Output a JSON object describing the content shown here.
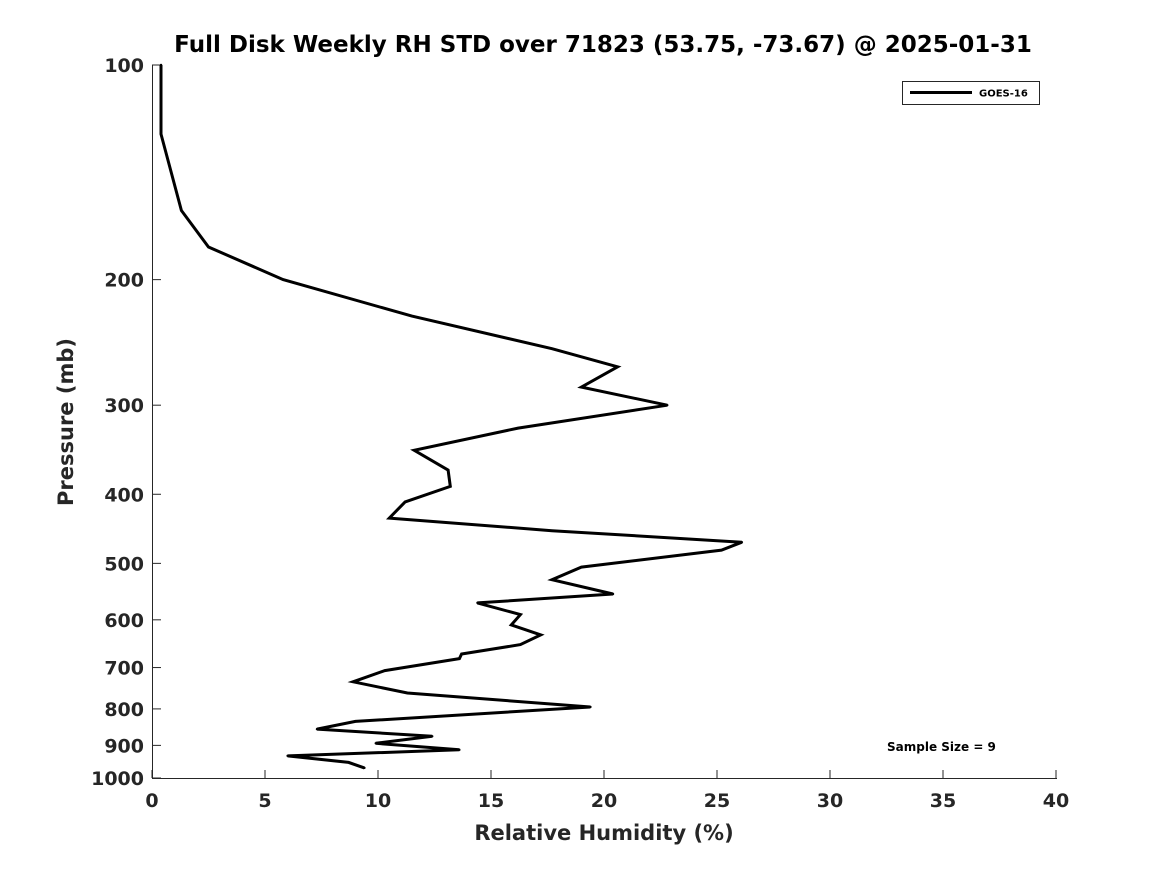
{
  "chart_data": {
    "type": "line",
    "title": "Full Disk Weekly RH STD over 71823 (53.75, -73.67) @ 2025-01-31",
    "xlabel": "Relative Humidity (%)",
    "ylabel": "Pressure (mb)",
    "xlim": [
      0,
      40
    ],
    "ylim": [
      100,
      1000
    ],
    "yscale": "log",
    "y_reversed": true,
    "xticks": [
      0,
      5,
      10,
      15,
      20,
      25,
      30,
      35,
      40
    ],
    "yticks": [
      100,
      200,
      300,
      400,
      500,
      600,
      700,
      800,
      900,
      1000
    ],
    "grid": false,
    "legend_position": "top-right",
    "annotation": "Sample Size = 9",
    "series": [
      {
        "name": "GOES-16",
        "color": "#000000",
        "x": [
          0.4,
          0.4,
          1.3,
          2.5,
          5.8,
          11.5,
          17.7,
          20.6,
          19.0,
          22.8,
          16.2,
          11.6,
          13.1,
          13.2,
          11.2,
          10.5,
          17.7,
          26.1,
          25.2,
          19.0,
          17.7,
          20.4,
          14.4,
          16.3,
          15.9,
          17.2,
          16.3,
          13.7,
          13.6,
          10.3,
          8.9,
          11.3,
          19.4,
          9.0,
          7.3,
          12.4,
          9.9,
          13.6,
          6.0,
          8.7,
          9.4
        ],
        "y": [
          100,
          125,
          160,
          180,
          200,
          225,
          250,
          265,
          283,
          300,
          323,
          347,
          370,
          390,
          410,
          432,
          450,
          467,
          479,
          506,
          527,
          552,
          568,
          590,
          610,
          630,
          650,
          670,
          680,
          707,
          733,
          760,
          795,
          833,
          854,
          874,
          894,
          913,
          931,
          951,
          968
        ]
      }
    ]
  }
}
